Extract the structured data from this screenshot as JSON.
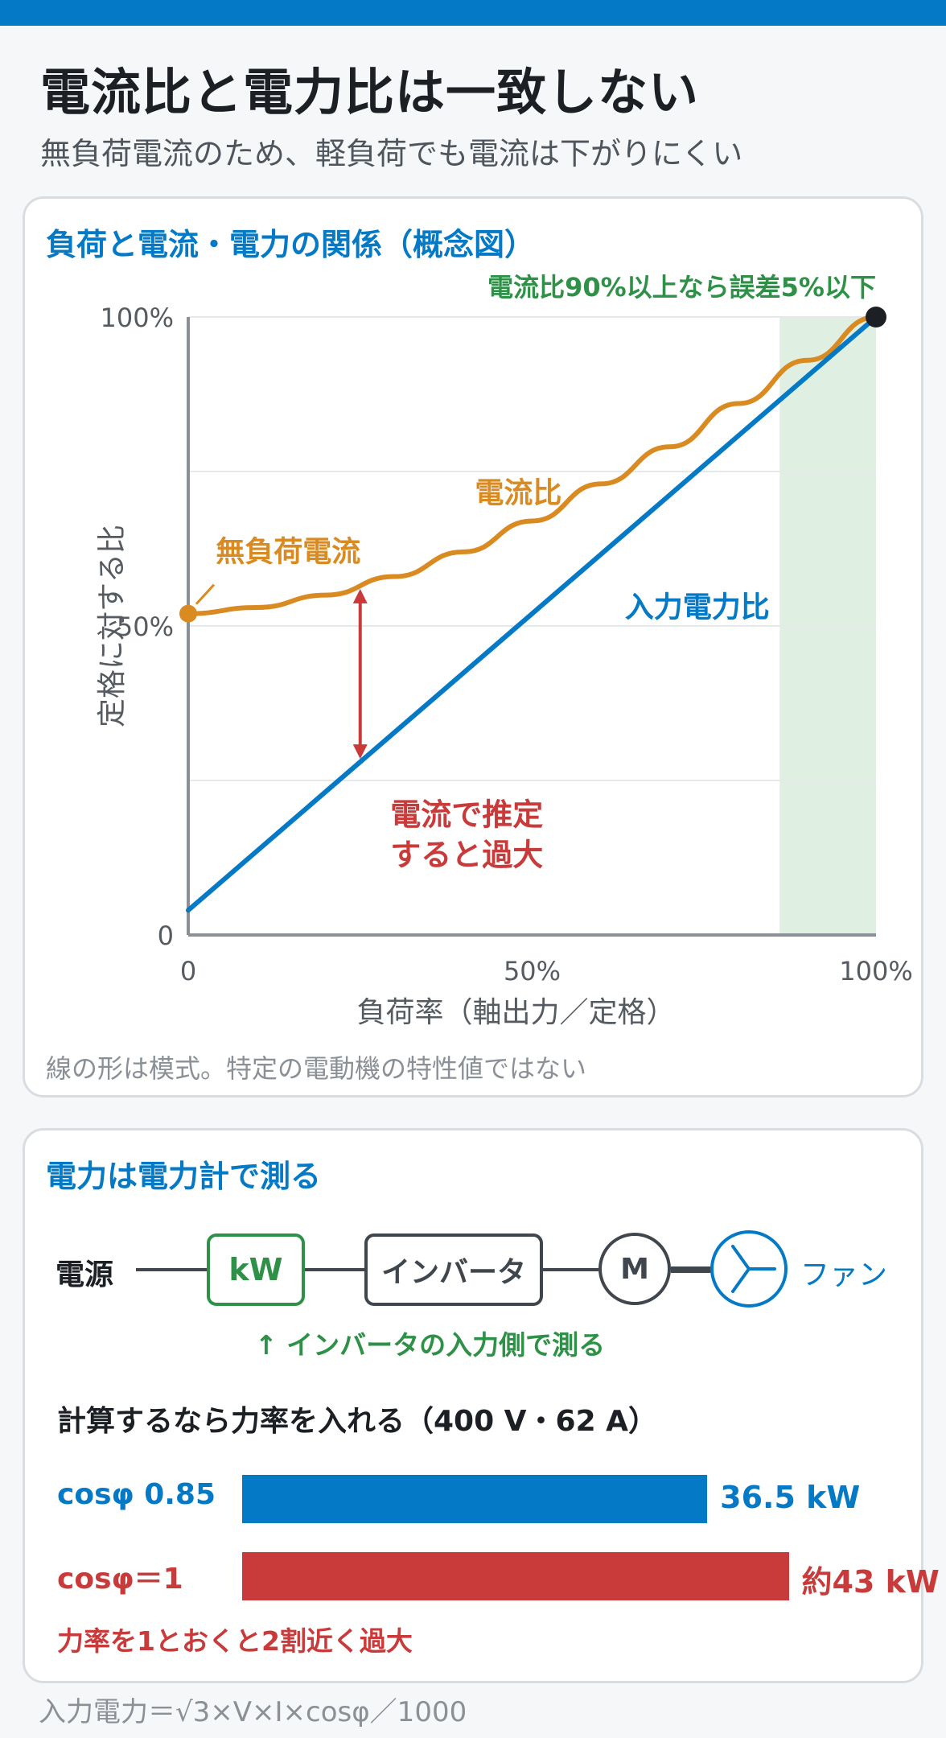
{
  "header": {
    "title": "電流比と電力比は一致しない",
    "subtitle": "無負荷電流のため、軽負荷でも電流は下がりにくい"
  },
  "colors": {
    "accent_blue": "#0479c6",
    "current_orange": "#d98a21",
    "error_red": "#c93a3a",
    "ok_green": "#2e9147",
    "zone_green": "#dff0e2"
  },
  "chart_data": {
    "type": "line",
    "title": "負荷と電流・電力の関係（概念図）",
    "xlabel": "負荷率（軸出力／定格）",
    "ylabel": "定格に対する比",
    "xlim": [
      0,
      100
    ],
    "ylim": [
      0,
      100
    ],
    "x_ticks": [
      "0",
      "50%",
      "100%"
    ],
    "y_ticks": [
      "0",
      "50%",
      "100%"
    ],
    "grid": true,
    "highlight_zone": {
      "x_from": 86,
      "x_to": 100,
      "label": "電流比90%以上なら誤差5%以下"
    },
    "series": [
      {
        "name": "電流比",
        "color": "#d98a21",
        "x": [
          0,
          10,
          20,
          30,
          40,
          50,
          60,
          70,
          80,
          90,
          100
        ],
        "y": [
          52,
          53,
          55,
          58,
          62,
          67,
          73,
          79,
          86,
          93,
          100
        ]
      },
      {
        "name": "入力電力比",
        "color": "#0479c6",
        "x": [
          0,
          100
        ],
        "y": [
          4,
          100
        ]
      }
    ],
    "annotations": [
      {
        "text": "無負荷電流",
        "x": 0,
        "y": 52
      },
      {
        "text": "電流で推定\nすると過大",
        "x": 25
      }
    ],
    "note": "線の形は模式。特定の電動機の特性値ではない"
  },
  "measurement": {
    "title": "電力は電力計で測る",
    "source_label": "電源",
    "meter_label": "kW",
    "inverter_label": "インバータ",
    "motor_label": "M",
    "fan_label": "ファン",
    "note": "↑ インバータの入力側で測る"
  },
  "calculation": {
    "title": "計算するなら力率を入れる（400 V・62 A）",
    "bars": [
      {
        "label": "cosφ 0.85",
        "value_text": "36.5 kW",
        "value": 36.5,
        "color": "#0479c6"
      },
      {
        "label": "cosφ＝1",
        "value_text": "約43 kW",
        "value": 42.9,
        "color": "#c93a3a"
      }
    ],
    "bar_max": 50,
    "warning": "力率を1とおくと2割近く過大"
  },
  "footer": {
    "formula": "入力電力＝√3×V×I×cosφ／1000"
  }
}
